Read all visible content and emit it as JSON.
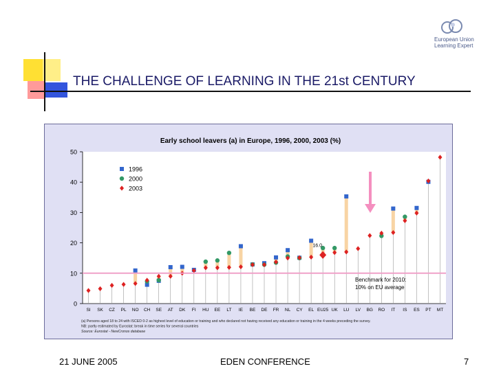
{
  "slide": {
    "title": "THE CHALLENGE OF LEARNING IN THE 21st CENTURY",
    "logo_line1": "European Union",
    "logo_line2": "Learning Expert",
    "footer_date": "21 JUNE 2005",
    "footer_event": "EDEN CONFERENCE",
    "page_number": "7"
  },
  "colors": {
    "yellow": "#ffe033",
    "red": "#ff3333",
    "blue": "#1133cc",
    "pink": "#f79ab8",
    "title": "#1a1a66"
  },
  "chart_data": {
    "type": "scatter",
    "title": "Early school leavers (a) in Europe, 1996, 2000, 2003 (%)",
    "categories": [
      "SI",
      "SK",
      "CZ",
      "PL",
      "NO",
      "CH",
      "SE",
      "AT",
      "DK",
      "FI",
      "HU",
      "EE",
      "LT",
      "IE",
      "BE",
      "DE",
      "FR",
      "NL",
      "CY",
      "EL",
      "EU25",
      "UK",
      "LU",
      "LV",
      "BG",
      "RO",
      "IT",
      "IS",
      "ES",
      "PT",
      "MT"
    ],
    "ylim": [
      0,
      50
    ],
    "yticks": [
      0,
      10,
      20,
      30,
      40,
      50
    ],
    "series": [
      {
        "name": "1996",
        "color": "#3366cc",
        "marker": "square",
        "values": [
          null,
          null,
          null,
          null,
          10.9,
          6.2,
          7.5,
          12.0,
          12.1,
          11.1,
          null,
          null,
          null,
          18.9,
          12.9,
          13.3,
          15.2,
          17.6,
          15.1,
          20.7,
          null,
          null,
          35.3,
          null,
          null,
          null,
          31.3,
          null,
          31.5,
          40.1,
          null
        ]
      },
      {
        "name": "2000",
        "color": "#339966",
        "marker": "circle",
        "values": [
          null,
          null,
          null,
          null,
          null,
          7.3,
          7.7,
          null,
          null,
          null,
          13.8,
          14.2,
          16.7,
          null,
          12.9,
          12.8,
          13.5,
          15.5,
          15.0,
          null,
          18.3,
          18.3,
          null,
          null,
          null,
          22.3,
          null,
          28.6,
          null,
          null,
          null
        ]
      },
      {
        "name": "2003",
        "color": "#dd2222",
        "marker": "diamond",
        "values": [
          4.3,
          4.9,
          6.0,
          6.3,
          6.6,
          7.7,
          9.0,
          9.0,
          10.0,
          10.9,
          11.8,
          11.8,
          11.9,
          12.1,
          12.8,
          12.8,
          13.7,
          15.0,
          15.1,
          15.3,
          16.0,
          16.8,
          17.0,
          18.1,
          22.4,
          23.2,
          23.4,
          27.3,
          29.8,
          40.4,
          48.2
        ]
      }
    ],
    "benchmark": {
      "value": 10,
      "label_line1": "Benchmark for 2010:",
      "label_line2": "10% on EU average"
    },
    "eu_value_label": "16.0",
    "legend_position": "top-left",
    "notes": [
      "(a) Persons aged 18 to 24 with ISCED 0-2 as highest level of education or training and who declared not having received any education or training in the 4 weeks preceding the survey.",
      "NB: partly estimated by Eurostat: break in time series for several countries",
      "Source: Eurostat - NewCronos database"
    ]
  }
}
